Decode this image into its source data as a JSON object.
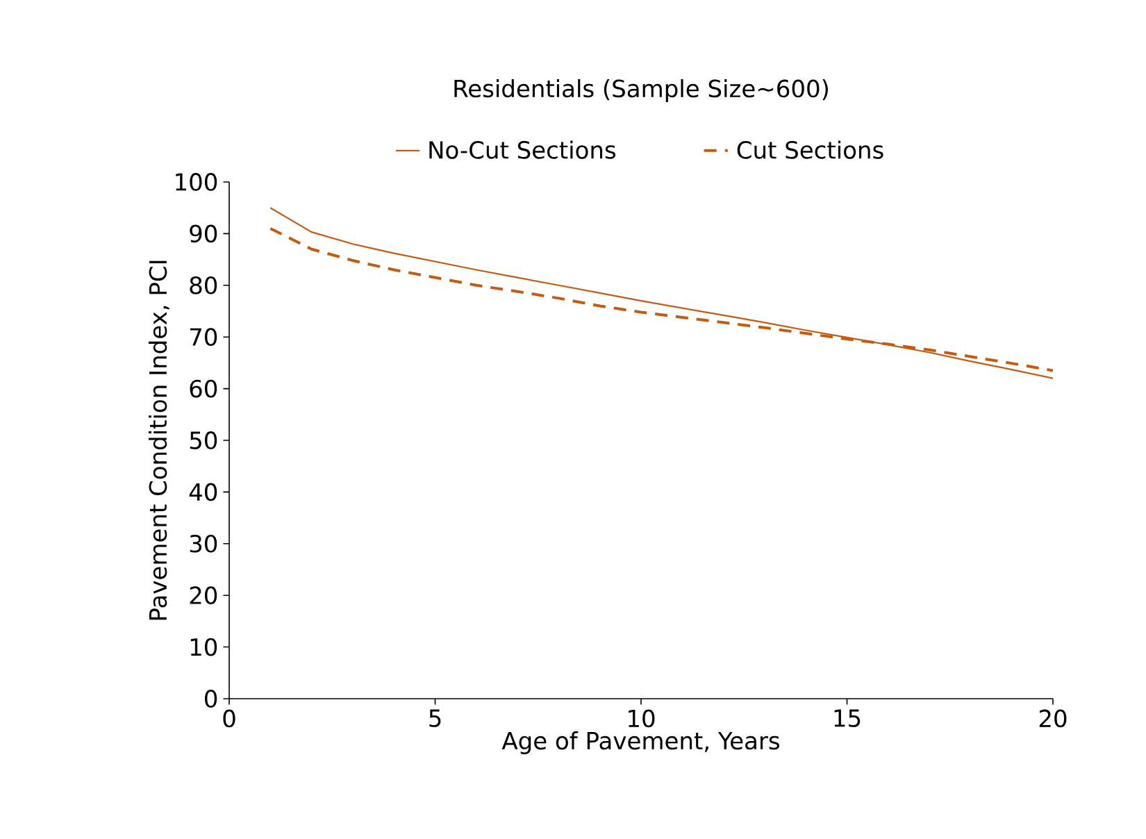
{
  "chart_data": {
    "type": "line",
    "title": "Residentials  (Sample Size~600)",
    "xlabel": "Age of Pavement, Years",
    "ylabel": "Pavement Condition Index, PCI",
    "x": [
      1,
      2,
      3,
      4,
      5,
      6,
      7,
      8,
      9,
      10,
      11,
      12,
      13,
      14,
      15,
      16,
      17,
      18,
      19,
      20
    ],
    "series": [
      {
        "name": "No-Cut Sections",
        "color": "#c55a11",
        "line_style": "solid",
        "values": [
          95,
          90.3,
          88,
          86.2,
          84.6,
          83,
          81.5,
          80,
          78.5,
          77,
          75.6,
          74.2,
          72.8,
          71.3,
          69.9,
          68.5,
          67,
          65.3,
          63.7,
          62
        ]
      },
      {
        "name": "Cut Sections",
        "color": "#c55a11",
        "line_style": "dashed",
        "values": [
          91,
          87,
          84.8,
          83,
          81.5,
          80,
          78.8,
          77.5,
          76,
          74.8,
          73.8,
          72.8,
          71.8,
          70.7,
          69.6,
          68.6,
          67.5,
          66.2,
          64.9,
          63.5
        ]
      }
    ],
    "xlim": [
      0,
      20
    ],
    "xticks": [
      0,
      5,
      10,
      15,
      20
    ],
    "ylim": [
      0,
      100
    ],
    "yticks": [
      0,
      10,
      20,
      30,
      40,
      50,
      60,
      70,
      80,
      90,
      100
    ],
    "grid": false,
    "legend": "top",
    "marker": "none"
  }
}
